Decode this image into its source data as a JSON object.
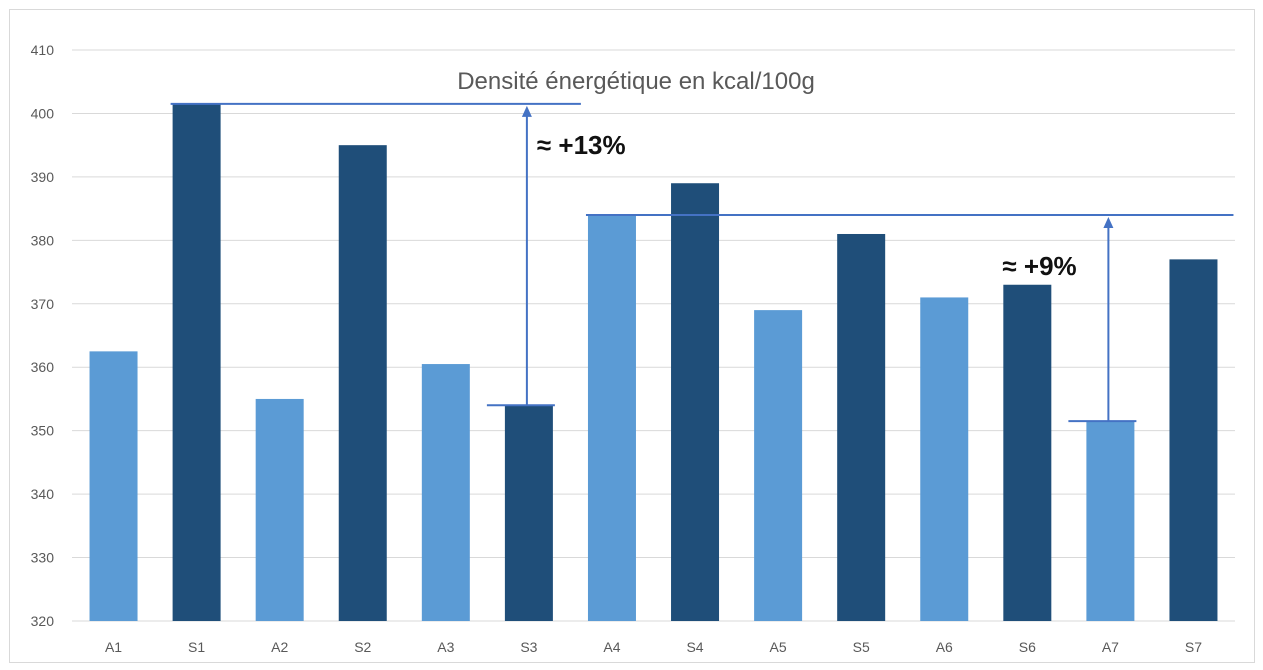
{
  "chart_data": {
    "type": "bar",
    "title": "Densité énergétique en kcal/100g",
    "xlabel": "",
    "ylabel": "",
    "ylim": [
      320,
      410
    ],
    "yticks": [
      320,
      330,
      340,
      350,
      360,
      370,
      380,
      390,
      400,
      410
    ],
    "categories": [
      "A1",
      "S1",
      "A2",
      "S2",
      "A3",
      "S3",
      "A4",
      "S4",
      "A5",
      "S5",
      "A6",
      "S6",
      "A7",
      "S7"
    ],
    "values": [
      362.5,
      401.5,
      355,
      395,
      360.5,
      354,
      384,
      389,
      369,
      381,
      371,
      373,
      351.5,
      377
    ],
    "grid": true,
    "legend": "none",
    "colors": {
      "A": "#5b9bd5",
      "S": "#1f4e79",
      "annotation_line": "#4472c4",
      "grid": "#d9d9d9"
    },
    "annotations": [
      {
        "text": "≈ +13%",
        "from_value": 354,
        "to_value": 401.5,
        "line_start": "S1",
        "line_end": "S3",
        "arrow_at": "S3"
      },
      {
        "text": "≈ +9%",
        "from_value": 351.5,
        "to_value": 384,
        "line_start": "A4",
        "line_end": "S7",
        "arrow_at": "A7"
      }
    ]
  }
}
